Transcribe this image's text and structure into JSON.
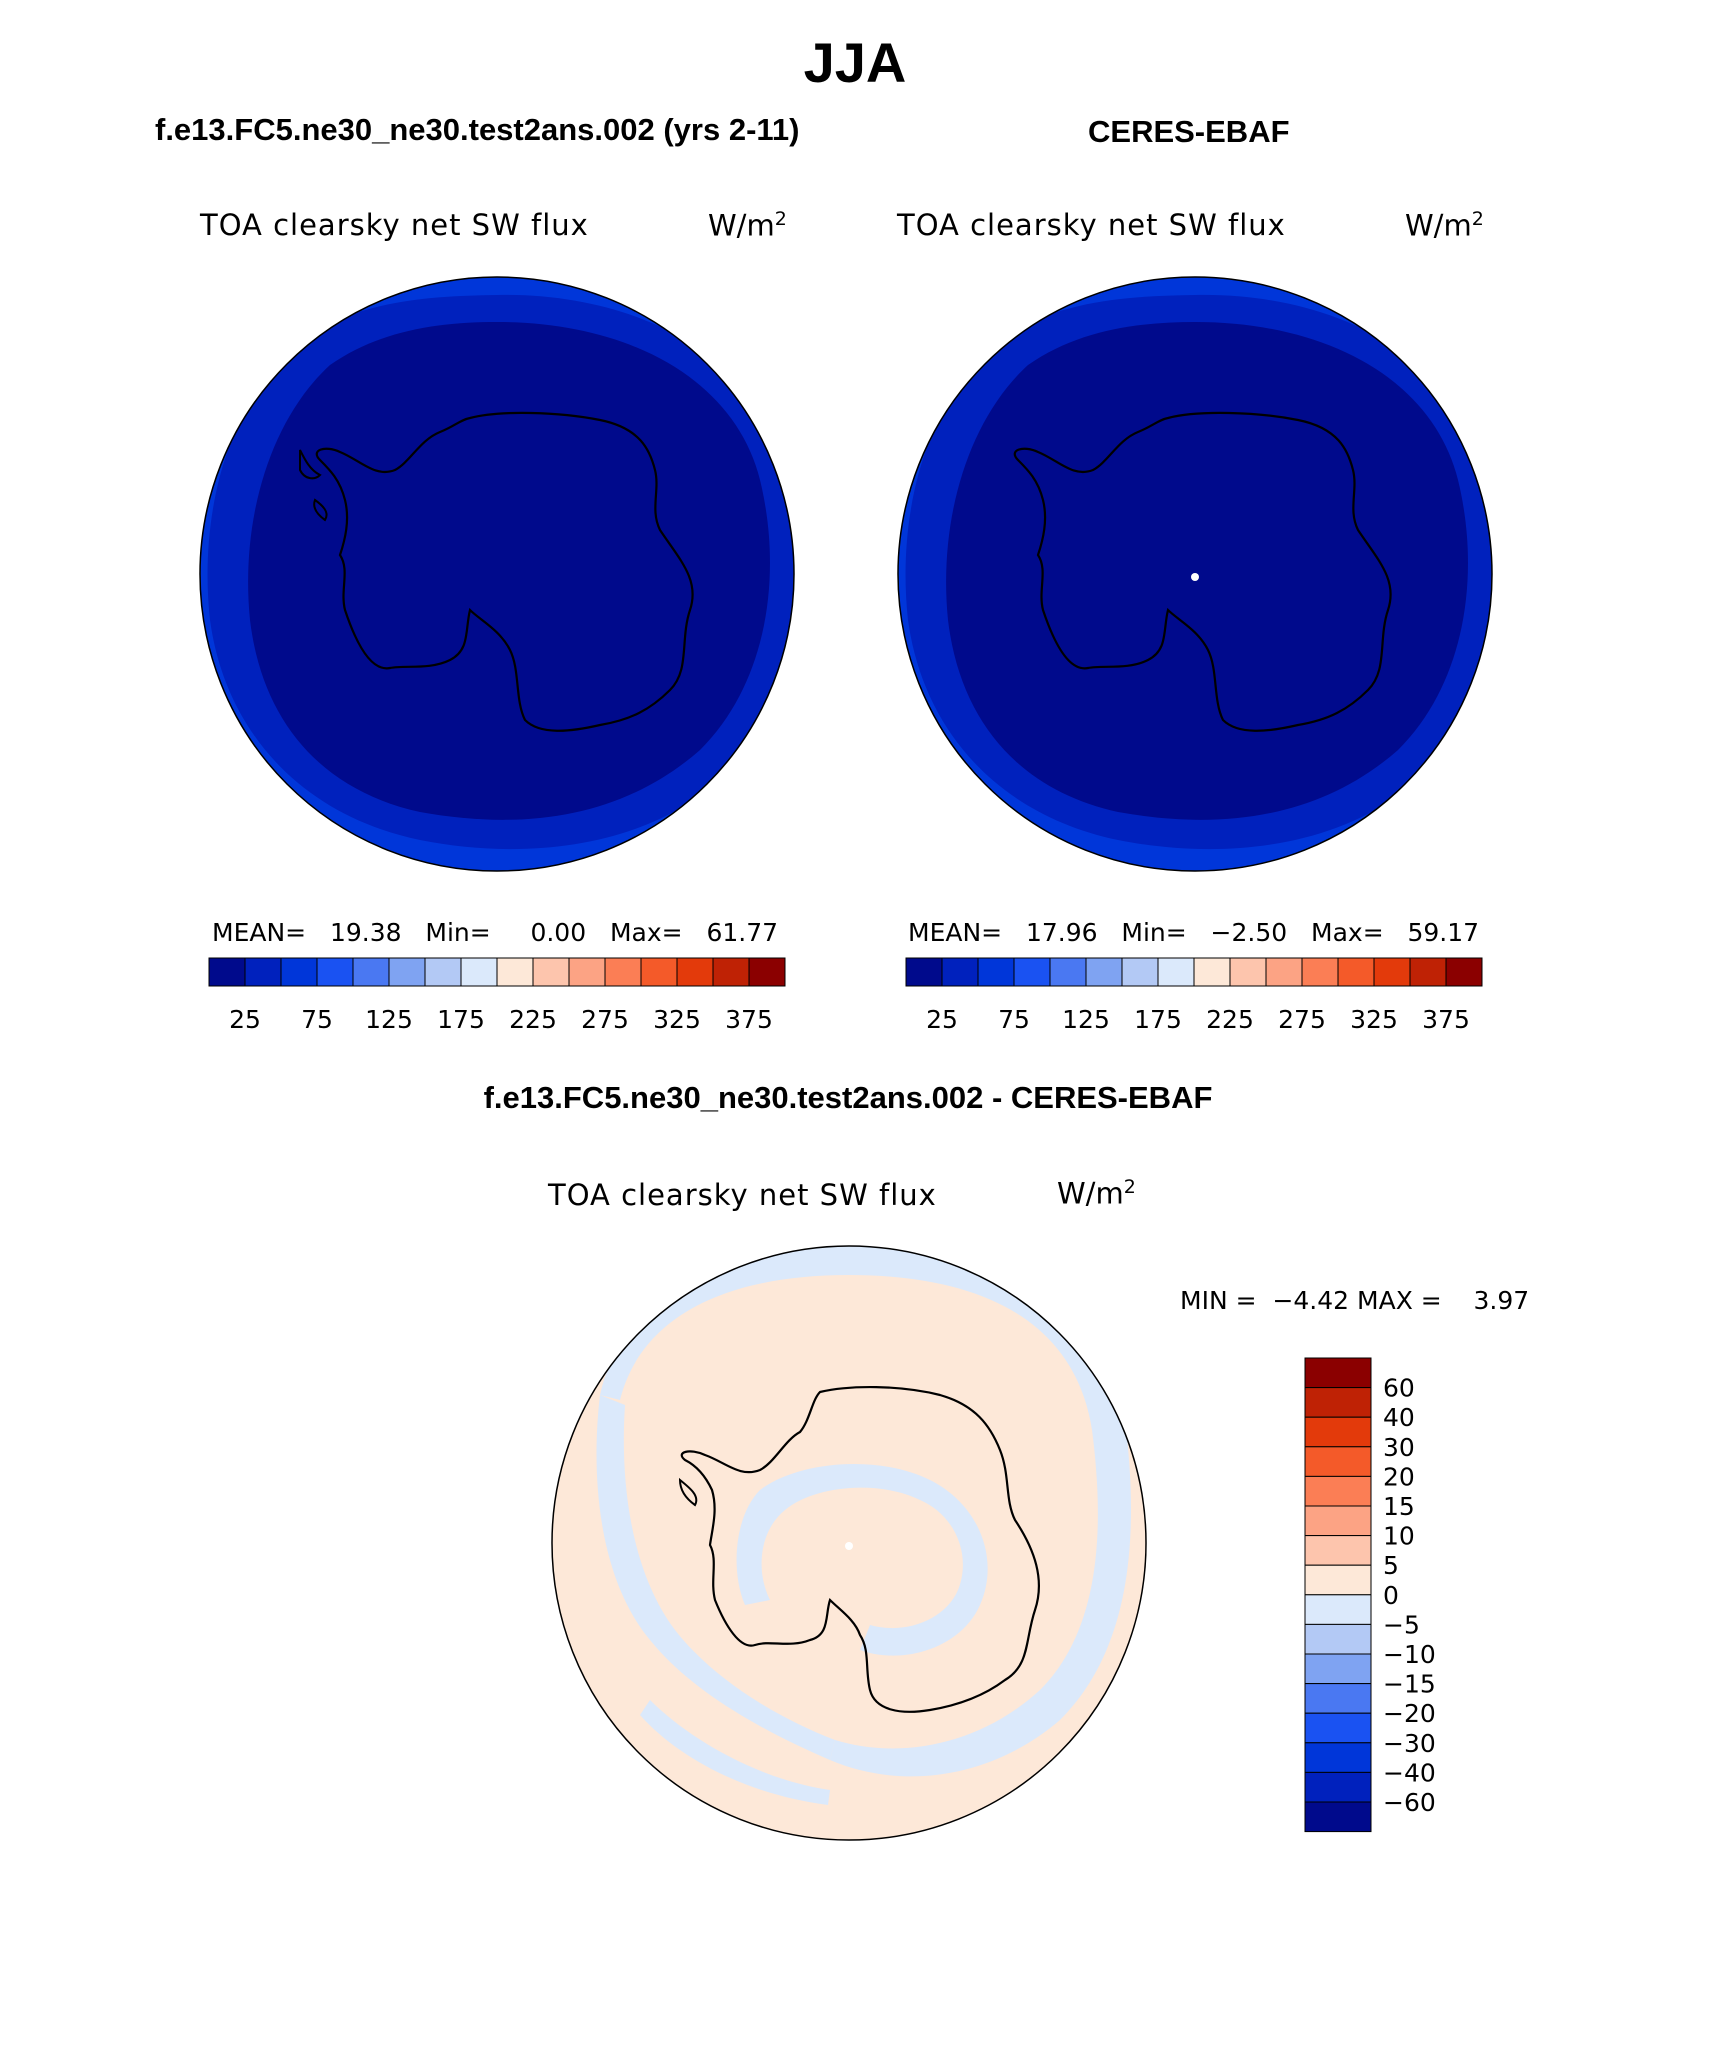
{
  "page": {
    "title": "JJA",
    "panel_left_heading": "f.e13.FC5.ne30_ne30.test2ans.002 (yrs 2-11)",
    "panel_right_heading": "CERES-EBAF",
    "panel_diff_heading": "f.e13.FC5.ne30_ne30.test2ans.002 - CERES-EBAF"
  },
  "panels": {
    "left": {
      "variable": "TOA clearsky net SW flux",
      "unit_base": "W/m",
      "unit_exp": "2",
      "mean_label": "MEAN=",
      "mean_value": "19.38",
      "min_label": "Min=",
      "min_value": "0.00",
      "max_label": "Max=",
      "max_value": "61.77"
    },
    "right": {
      "variable": "TOA clearsky net SW flux",
      "unit_base": "W/m",
      "unit_exp": "2",
      "mean_label": "MEAN=",
      "mean_value": "17.96",
      "min_label": "Min=",
      "min_value": "−2.50",
      "max_label": "Max=",
      "max_value": "59.17"
    },
    "diff": {
      "variable": "TOA clearsky net SW flux",
      "unit_base": "W/m",
      "unit_exp": "2",
      "min_label": "MIN =",
      "min_value": "−4.42",
      "max_label": "MAX =",
      "max_value": "3.97"
    }
  },
  "colorbars": {
    "abs_colors": [
      "#000a8c",
      "#0021bd",
      "#0036d9",
      "#1a52f2",
      "#4a78f2",
      "#7fa3f2",
      "#b3c9f5",
      "#dbe9fb",
      "#fde8d8",
      "#fdc5ad",
      "#fca384",
      "#fb7e55",
      "#f45a29",
      "#e33a0b",
      "#bf2205",
      "#8b0000"
    ],
    "abs_ticks": [
      "25",
      "75",
      "125",
      "175",
      "225",
      "275",
      "325",
      "375"
    ],
    "diff_colors_top_to_bottom": [
      "#8b0000",
      "#bf2205",
      "#e33a0b",
      "#f45a29",
      "#fb7e55",
      "#fca384",
      "#fdc5ad",
      "#fde8d8",
      "#dbe9fb",
      "#b3c9f5",
      "#7fa3f2",
      "#4a78f2",
      "#1a52f2",
      "#0036d9",
      "#0021bd",
      "#000a8c"
    ],
    "diff_ticks": [
      "60",
      "40",
      "30",
      "20",
      "15",
      "10",
      "5",
      "0",
      "−5",
      "−10",
      "−15",
      "−20",
      "−30",
      "−40",
      "−60"
    ]
  },
  "map_colors": {
    "outer_ring": "#0036d9",
    "mid_ring": "#0021bd",
    "inner": "#000a8c",
    "diff_bg": "#fde8d8",
    "diff_neg": "#dbe9fb"
  }
}
